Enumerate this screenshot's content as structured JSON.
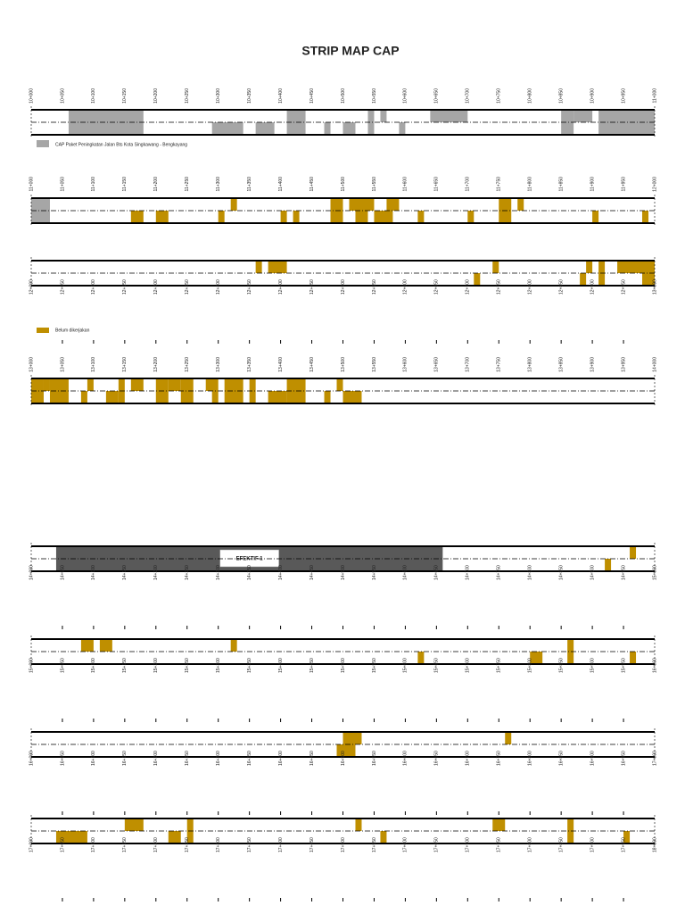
{
  "title": "STRIP MAP CAP",
  "legend": [
    {
      "label": "CAP Paket Peningkatan Jalan Bts Kota Singkawang - Bengkayang",
      "color": "#a6a6a6"
    },
    {
      "label": "Belum dikerjakan",
      "color": "#bf8f00"
    }
  ],
  "kinds": {
    "cap": "#a6a6a6",
    "belum": "#bf8f00",
    "efektif": "#595959"
  },
  "strips": [
    {
      "range": [
        10000,
        11000
      ],
      "labels_side": "above",
      "labels": [
        "10+000",
        "10+050",
        "10+100",
        "10+150",
        "10+200",
        "10+250",
        "10+300",
        "10+350",
        "10+400",
        "10+450",
        "10+500",
        "10+550",
        "10+600",
        "10+650",
        "10+700",
        "10+750",
        "10+800",
        "10+850",
        "10+900",
        "10+950",
        "11+000"
      ],
      "blocks": [
        {
          "from": 10060,
          "to": 10180,
          "lane": "full",
          "kind": "cap"
        },
        {
          "from": 10290,
          "to": 10340,
          "lane": "bottom",
          "kind": "cap"
        },
        {
          "from": 10360,
          "to": 10390,
          "lane": "bottom",
          "kind": "cap"
        },
        {
          "from": 10410,
          "to": 10440,
          "lane": "full",
          "kind": "cap"
        },
        {
          "from": 10470,
          "to": 10480,
          "lane": "bottom",
          "kind": "cap"
        },
        {
          "from": 10500,
          "to": 10520,
          "lane": "bottom",
          "kind": "cap"
        },
        {
          "from": 10540,
          "to": 10550,
          "lane": "full",
          "kind": "cap"
        },
        {
          "from": 10560,
          "to": 10570,
          "lane": "top",
          "kind": "cap"
        },
        {
          "from": 10590,
          "to": 10600,
          "lane": "bottom",
          "kind": "cap"
        },
        {
          "from": 10640,
          "to": 10700,
          "lane": "top",
          "kind": "cap"
        },
        {
          "from": 10850,
          "to": 10870,
          "lane": "full",
          "kind": "cap"
        },
        {
          "from": 10870,
          "to": 10900,
          "lane": "top",
          "kind": "cap"
        },
        {
          "from": 10910,
          "to": 11000,
          "lane": "full",
          "kind": "cap"
        }
      ]
    },
    {
      "range": [
        11000,
        12000
      ],
      "labels_side": "above",
      "labels": [
        "11+000",
        "11+050",
        "11+100",
        "11+150",
        "11+200",
        "11+250",
        "11+300",
        "11+350",
        "11+400",
        "11+450",
        "11+500",
        "11+550",
        "11+600",
        "11+650",
        "11+700",
        "11+750",
        "11+800",
        "11+850",
        "11+900",
        "11+950",
        "12+000"
      ],
      "blocks": [
        {
          "from": 11000,
          "to": 11030,
          "lane": "full",
          "kind": "cap"
        },
        {
          "from": 11160,
          "to": 11180,
          "lane": "bottom",
          "kind": "belum"
        },
        {
          "from": 11200,
          "to": 11220,
          "lane": "bottom",
          "kind": "belum"
        },
        {
          "from": 11300,
          "to": 11310,
          "lane": "bottom",
          "kind": "belum"
        },
        {
          "from": 11320,
          "to": 11330,
          "lane": "top",
          "kind": "belum"
        },
        {
          "from": 11400,
          "to": 11410,
          "lane": "bottom",
          "kind": "belum"
        },
        {
          "from": 11420,
          "to": 11430,
          "lane": "bottom",
          "kind": "belum"
        },
        {
          "from": 11480,
          "to": 11500,
          "lane": "full",
          "kind": "belum"
        },
        {
          "from": 11510,
          "to": 11550,
          "lane": "top",
          "kind": "belum"
        },
        {
          "from": 11520,
          "to": 11540,
          "lane": "bottom",
          "kind": "belum"
        },
        {
          "from": 11550,
          "to": 11580,
          "lane": "bottom",
          "kind": "belum"
        },
        {
          "from": 11570,
          "to": 11590,
          "lane": "top",
          "kind": "belum"
        },
        {
          "from": 11620,
          "to": 11630,
          "lane": "bottom",
          "kind": "belum"
        },
        {
          "from": 11700,
          "to": 11710,
          "lane": "bottom",
          "kind": "belum"
        },
        {
          "from": 11750,
          "to": 11770,
          "lane": "full",
          "kind": "belum"
        },
        {
          "from": 11780,
          "to": 11790,
          "lane": "top",
          "kind": "belum"
        },
        {
          "from": 11900,
          "to": 11910,
          "lane": "bottom",
          "kind": "belum"
        },
        {
          "from": 11980,
          "to": 11990,
          "lane": "bottom",
          "kind": "belum"
        }
      ]
    },
    {
      "range": [
        12000,
        13000
      ],
      "labels_side": "below",
      "labels": [
        "12+000",
        "12+050",
        "12+100",
        "12+150",
        "12+200",
        "12+250",
        "12+300",
        "12+350",
        "12+400",
        "12+450",
        "12+500",
        "12+550",
        "12+600",
        "12+650",
        "12+700",
        "12+750",
        "12+800",
        "12+850",
        "12+900",
        "12+950",
        "13+000"
      ],
      "blocks": [
        {
          "from": 12360,
          "to": 12370,
          "lane": "top",
          "kind": "belum"
        },
        {
          "from": 12380,
          "to": 12410,
          "lane": "top",
          "kind": "belum"
        },
        {
          "from": 12710,
          "to": 12720,
          "lane": "bottom",
          "kind": "belum"
        },
        {
          "from": 12740,
          "to": 12750,
          "lane": "top",
          "kind": "belum"
        },
        {
          "from": 12880,
          "to": 12890,
          "lane": "bottom",
          "kind": "belum"
        },
        {
          "from": 12890,
          "to": 12900,
          "lane": "top",
          "kind": "belum"
        },
        {
          "from": 12910,
          "to": 12920,
          "lane": "full",
          "kind": "belum"
        },
        {
          "from": 12940,
          "to": 13000,
          "lane": "top",
          "kind": "belum"
        },
        {
          "from": 12980,
          "to": 13000,
          "lane": "bottom",
          "kind": "belum"
        }
      ]
    },
    {
      "range": [
        13000,
        14000
      ],
      "labels_side": "above",
      "labels": [
        "13+000",
        "13+050",
        "13+100",
        "13+150",
        "13+200",
        "13+250",
        "13+300",
        "13+350",
        "13+400",
        "13+450",
        "13+500",
        "13+550",
        "13+600",
        "13+650",
        "13+700",
        "13+750",
        "13+800",
        "13+850",
        "13+900",
        "13+950",
        "14+000"
      ],
      "blocks": [
        {
          "from": 13000,
          "to": 13020,
          "lane": "full",
          "kind": "belum"
        },
        {
          "from": 13020,
          "to": 13030,
          "lane": "top",
          "kind": "belum"
        },
        {
          "from": 13030,
          "to": 13060,
          "lane": "full",
          "kind": "belum"
        },
        {
          "from": 13080,
          "to": 13090,
          "lane": "bottom",
          "kind": "belum"
        },
        {
          "from": 13090,
          "to": 13100,
          "lane": "top",
          "kind": "belum"
        },
        {
          "from": 13120,
          "to": 13140,
          "lane": "bottom",
          "kind": "belum"
        },
        {
          "from": 13140,
          "to": 13150,
          "lane": "full",
          "kind": "belum"
        },
        {
          "from": 13160,
          "to": 13180,
          "lane": "top",
          "kind": "belum"
        },
        {
          "from": 13200,
          "to": 13220,
          "lane": "full",
          "kind": "belum"
        },
        {
          "from": 13220,
          "to": 13240,
          "lane": "top",
          "kind": "belum"
        },
        {
          "from": 13240,
          "to": 13260,
          "lane": "full",
          "kind": "belum"
        },
        {
          "from": 13280,
          "to": 13300,
          "lane": "top",
          "kind": "belum"
        },
        {
          "from": 13290,
          "to": 13300,
          "lane": "bottom",
          "kind": "belum"
        },
        {
          "from": 13310,
          "to": 13340,
          "lane": "full",
          "kind": "belum"
        },
        {
          "from": 13350,
          "to": 13360,
          "lane": "top",
          "kind": "belum"
        },
        {
          "from": 13350,
          "to": 13360,
          "lane": "bottom",
          "kind": "belum"
        },
        {
          "from": 13380,
          "to": 13410,
          "lane": "bottom",
          "kind": "belum"
        },
        {
          "from": 13410,
          "to": 13440,
          "lane": "full",
          "kind": "belum"
        },
        {
          "from": 13470,
          "to": 13480,
          "lane": "bottom",
          "kind": "belum"
        },
        {
          "from": 13490,
          "to": 13500,
          "lane": "top",
          "kind": "belum"
        },
        {
          "from": 13500,
          "to": 13530,
          "lane": "bottom",
          "kind": "belum"
        }
      ]
    },
    {
      "range": [
        14000,
        15000
      ],
      "labels_side": "below",
      "labels": [
        "14+000",
        "14+050",
        "14+100",
        "14+150",
        "14+200",
        "14+250",
        "14+300",
        "14+350",
        "14+400",
        "14+450",
        "14+500",
        "14+550",
        "14+600",
        "14+650",
        "14+700",
        "14+750",
        "14+800",
        "14+850",
        "14+900",
        "14+950",
        "15+000"
      ],
      "blocks": [
        {
          "from": 14040,
          "to": 14660,
          "lane": "full",
          "kind": "efektif",
          "label": "EFEKTIF 1"
        },
        {
          "from": 14920,
          "to": 14930,
          "lane": "bottom",
          "kind": "belum"
        },
        {
          "from": 14960,
          "to": 14970,
          "lane": "top",
          "kind": "belum"
        }
      ]
    },
    {
      "range": [
        15000,
        16000
      ],
      "labels_side": "below",
      "labels": [
        "15+000",
        "15+050",
        "15+100",
        "15+150",
        "15+200",
        "15+250",
        "15+300",
        "15+350",
        "15+400",
        "15+450",
        "15+500",
        "15+550",
        "15+600",
        "15+650",
        "15+700",
        "15+750",
        "15+800",
        "15+850",
        "15+900",
        "15+950",
        "16+000"
      ],
      "blocks": [
        {
          "from": 15080,
          "to": 15100,
          "lane": "top",
          "kind": "belum"
        },
        {
          "from": 15110,
          "to": 15130,
          "lane": "top",
          "kind": "belum"
        },
        {
          "from": 15320,
          "to": 15330,
          "lane": "top",
          "kind": "belum"
        },
        {
          "from": 15620,
          "to": 15630,
          "lane": "bottom",
          "kind": "belum"
        },
        {
          "from": 15800,
          "to": 15820,
          "lane": "bottom",
          "kind": "belum"
        },
        {
          "from": 15860,
          "to": 15870,
          "lane": "full",
          "kind": "belum"
        },
        {
          "from": 15960,
          "to": 15970,
          "lane": "bottom",
          "kind": "belum"
        }
      ]
    },
    {
      "range": [
        16000,
        17000
      ],
      "labels_side": "below",
      "labels": [
        "16+000",
        "16+050",
        "16+100",
        "16+150",
        "16+200",
        "16+250",
        "16+300",
        "16+350",
        "16+400",
        "16+450",
        "16+500",
        "16+550",
        "16+600",
        "16+650",
        "16+700",
        "16+750",
        "16+800",
        "16+850",
        "16+900",
        "16+950",
        "17+000"
      ],
      "blocks": [
        {
          "from": 16500,
          "to": 16530,
          "lane": "top",
          "kind": "belum"
        },
        {
          "from": 16490,
          "to": 16520,
          "lane": "bottom",
          "kind": "belum"
        },
        {
          "from": 16760,
          "to": 16770,
          "lane": "top",
          "kind": "belum"
        }
      ]
    },
    {
      "range": [
        17000,
        18000
      ],
      "labels_side": "below",
      "labels": [
        "17+000",
        "17+050",
        "17+100",
        "17+150",
        "17+200",
        "17+250",
        "17+300",
        "17+350",
        "17+400",
        "17+450",
        "17+500",
        "17+550",
        "17+600",
        "17+650",
        "17+700",
        "17+750",
        "17+800",
        "17+850",
        "17+900",
        "17+950",
        "18+000"
      ],
      "blocks": [
        {
          "from": 17040,
          "to": 17090,
          "lane": "bottom",
          "kind": "belum"
        },
        {
          "from": 17150,
          "to": 17180,
          "lane": "top",
          "kind": "belum"
        },
        {
          "from": 17220,
          "to": 17240,
          "lane": "bottom",
          "kind": "belum"
        },
        {
          "from": 17250,
          "to": 17260,
          "lane": "full",
          "kind": "belum"
        },
        {
          "from": 17520,
          "to": 17530,
          "lane": "top",
          "kind": "belum"
        },
        {
          "from": 17560,
          "to": 17570,
          "lane": "bottom",
          "kind": "belum"
        },
        {
          "from": 17740,
          "to": 17760,
          "lane": "top",
          "kind": "belum"
        },
        {
          "from": 17860,
          "to": 17870,
          "lane": "full",
          "kind": "belum"
        },
        {
          "from": 17950,
          "to": 17960,
          "lane": "bottom",
          "kind": "belum"
        }
      ]
    }
  ]
}
